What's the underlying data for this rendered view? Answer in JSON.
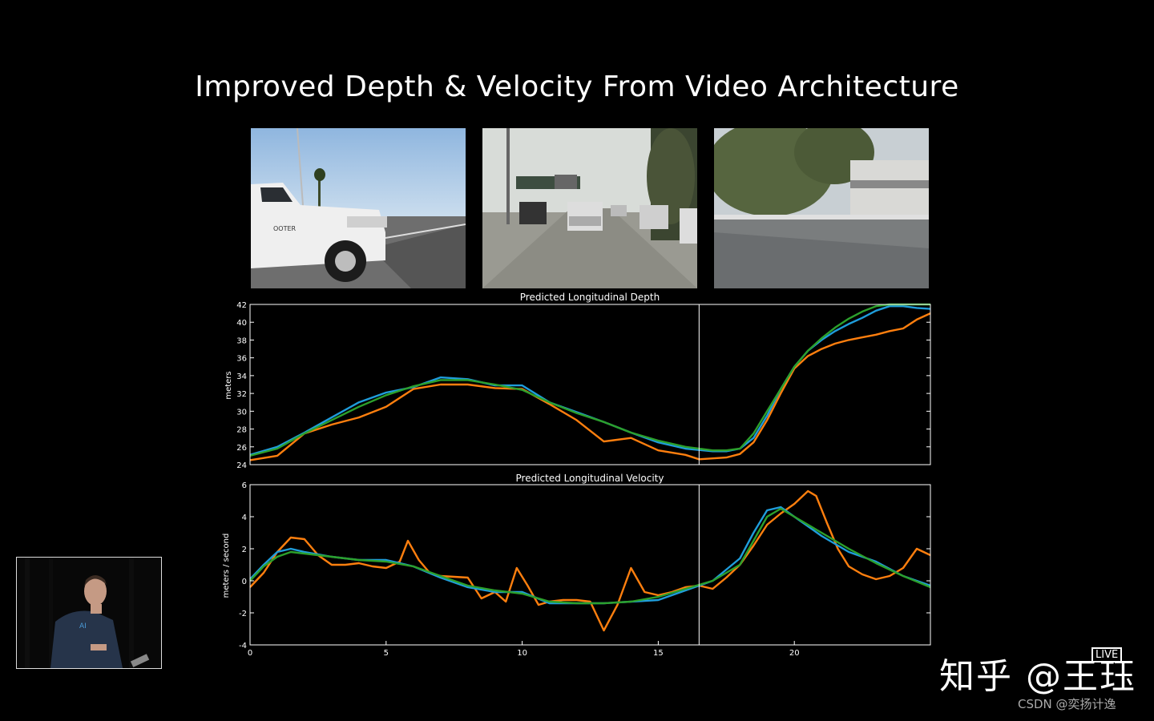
{
  "slide": {
    "title": "Improved Depth & Velocity From Video Architecture"
  },
  "images": [
    {
      "label": "camera-frame-truck"
    },
    {
      "label": "camera-frame-highway"
    },
    {
      "label": "camera-frame-roadside"
    }
  ],
  "watermark": {
    "main": "知乎 @王珏",
    "live": "LIVE",
    "sub": "CSDN @奕扬计逸"
  },
  "colors": {
    "green": "#2ca02c",
    "blue": "#1f9ddb",
    "orange": "#ff7f0e",
    "axis": "#ffffff"
  },
  "chart_data": [
    {
      "type": "line",
      "title": "Predicted Longitudinal Depth",
      "xlabel": "",
      "ylabel": "meters",
      "xlim": [
        0,
        25
      ],
      "ylim": [
        24,
        42
      ],
      "yticks": [
        24,
        26,
        28,
        30,
        32,
        34,
        36,
        38,
        40,
        42
      ],
      "xticks": [],
      "vline_x": 16.5,
      "series": [
        {
          "color": "green",
          "x": [
            0,
            1,
            2,
            3,
            4,
            5,
            6,
            7,
            8,
            9,
            10,
            11,
            12,
            13,
            14,
            15,
            16,
            17,
            17.5,
            18,
            18.5,
            19,
            19.5,
            20,
            20.5,
            21,
            21.5,
            22,
            22.5,
            23,
            23.5,
            24,
            24.5,
            25
          ],
          "values": [
            25,
            25.8,
            27.5,
            29,
            30.5,
            31.8,
            32.8,
            33.5,
            33.5,
            33,
            32.4,
            31,
            29.8,
            28.8,
            27.6,
            26.7,
            26,
            25.6,
            25.6,
            25.8,
            27.5,
            30,
            32.5,
            35,
            36.8,
            38.2,
            39.4,
            40.4,
            41.2,
            41.8,
            42,
            42,
            42,
            42
          ]
        },
        {
          "color": "blue",
          "x": [
            0,
            1,
            2,
            3,
            4,
            5,
            6,
            7,
            8,
            9,
            10,
            11,
            12,
            13,
            14,
            15,
            16,
            17,
            17.5,
            18,
            18.5,
            19,
            19.5,
            20,
            20.5,
            21,
            21.5,
            22,
            22.5,
            23,
            23.5,
            24,
            24.5,
            25
          ],
          "values": [
            25.1,
            26,
            27.6,
            29.3,
            31,
            32.1,
            32.7,
            33.8,
            33.6,
            32.9,
            32.9,
            31,
            29.9,
            28.8,
            27.6,
            26.5,
            25.8,
            25.5,
            25.5,
            25.8,
            27,
            29.5,
            32.5,
            35,
            36.8,
            38,
            39,
            39.8,
            40.5,
            41.3,
            41.8,
            41.8,
            41.6,
            41.5
          ]
        },
        {
          "color": "orange",
          "x": [
            0,
            1,
            2,
            3,
            4,
            5,
            6,
            7,
            8,
            9,
            10,
            11,
            12,
            13,
            14,
            15,
            16,
            16.5,
            17,
            17.5,
            18,
            18.5,
            19,
            19.5,
            20,
            20.5,
            21,
            21.5,
            22,
            22.5,
            23,
            23.5,
            24,
            24.5,
            25
          ],
          "values": [
            24.5,
            25,
            27.5,
            28.5,
            29.3,
            30.5,
            32.5,
            33,
            33,
            32.6,
            32.5,
            30.8,
            29,
            26.6,
            27,
            25.6,
            25.1,
            24.6,
            24.7,
            24.8,
            25.2,
            26.5,
            29,
            32,
            34.8,
            36.2,
            37,
            37.6,
            38,
            38.3,
            38.6,
            39,
            39.3,
            40.3,
            41
          ]
        }
      ]
    },
    {
      "type": "line",
      "title": "Predicted Longitudinal Velocity",
      "xlabel": "",
      "ylabel": "meters / second",
      "xlim": [
        0,
        25
      ],
      "ylim": [
        -4,
        6
      ],
      "yticks": [
        -4,
        -2,
        0,
        2,
        4,
        6
      ],
      "xticks": [
        0,
        5,
        10,
        15,
        20
      ],
      "vline_x": 16.5,
      "series": [
        {
          "color": "green",
          "x": [
            0,
            0.5,
            1,
            1.5,
            2,
            3,
            4,
            5,
            6,
            7,
            8,
            9,
            10,
            11,
            12,
            13,
            14,
            15,
            16,
            17,
            18,
            18.5,
            19,
            19.5,
            20,
            21,
            22,
            23,
            24,
            25
          ],
          "values": [
            0,
            0.9,
            1.5,
            1.8,
            1.7,
            1.5,
            1.3,
            1.2,
            0.9,
            0.3,
            -0.3,
            -0.6,
            -0.8,
            -1.3,
            -1.4,
            -1.4,
            -1.3,
            -1,
            -0.5,
            0,
            1,
            2.5,
            4,
            4.5,
            4,
            3,
            2,
            1.1,
            0.3,
            -0.4
          ]
        },
        {
          "color": "blue",
          "x": [
            0,
            0.5,
            1,
            1.5,
            2,
            3,
            4,
            5,
            6,
            7,
            8,
            9,
            10,
            11,
            12,
            13,
            14,
            15,
            16,
            17,
            18,
            18.5,
            19,
            19.5,
            20,
            21,
            22,
            23,
            24,
            25
          ],
          "values": [
            0.1,
            1,
            1.8,
            2,
            1.8,
            1.5,
            1.3,
            1.3,
            0.9,
            0.2,
            -0.4,
            -0.7,
            -0.7,
            -1.4,
            -1.4,
            -1.4,
            -1.3,
            -1.2,
            -0.6,
            0,
            1.4,
            3,
            4.4,
            4.6,
            4,
            2.8,
            1.8,
            1.2,
            0.3,
            -0.3
          ]
        },
        {
          "color": "orange",
          "x": [
            0,
            0.5,
            1,
            1.5,
            2,
            2.5,
            3,
            3.5,
            4,
            4.5,
            5,
            5.5,
            5.8,
            6.2,
            6.6,
            7,
            8,
            8.5,
            9,
            9.4,
            9.8,
            10.2,
            10.6,
            11,
            11.5,
            12,
            12.5,
            13,
            13.5,
            14,
            14.5,
            15,
            15.5,
            16,
            16.5,
            17,
            17.5,
            18,
            18.5,
            19,
            19.5,
            20,
            20.5,
            20.8,
            21.2,
            21.6,
            22,
            22.5,
            23,
            23.5,
            24,
            24.5,
            25
          ],
          "values": [
            -0.4,
            0.5,
            1.8,
            2.7,
            2.6,
            1.6,
            1,
            1,
            1.1,
            0.9,
            0.8,
            1.2,
            2.5,
            1.3,
            0.5,
            0.3,
            0.2,
            -1.1,
            -0.7,
            -1.3,
            0.8,
            -0.3,
            -1.5,
            -1.3,
            -1.2,
            -1.2,
            -1.3,
            -3.1,
            -1.5,
            0.8,
            -0.7,
            -0.9,
            -0.7,
            -0.4,
            -0.3,
            -0.5,
            0.2,
            1,
            2.2,
            3.5,
            4.2,
            4.8,
            5.6,
            5.3,
            3.6,
            2,
            0.9,
            0.4,
            0.1,
            0.3,
            0.8,
            2,
            1.6
          ]
        }
      ]
    }
  ]
}
